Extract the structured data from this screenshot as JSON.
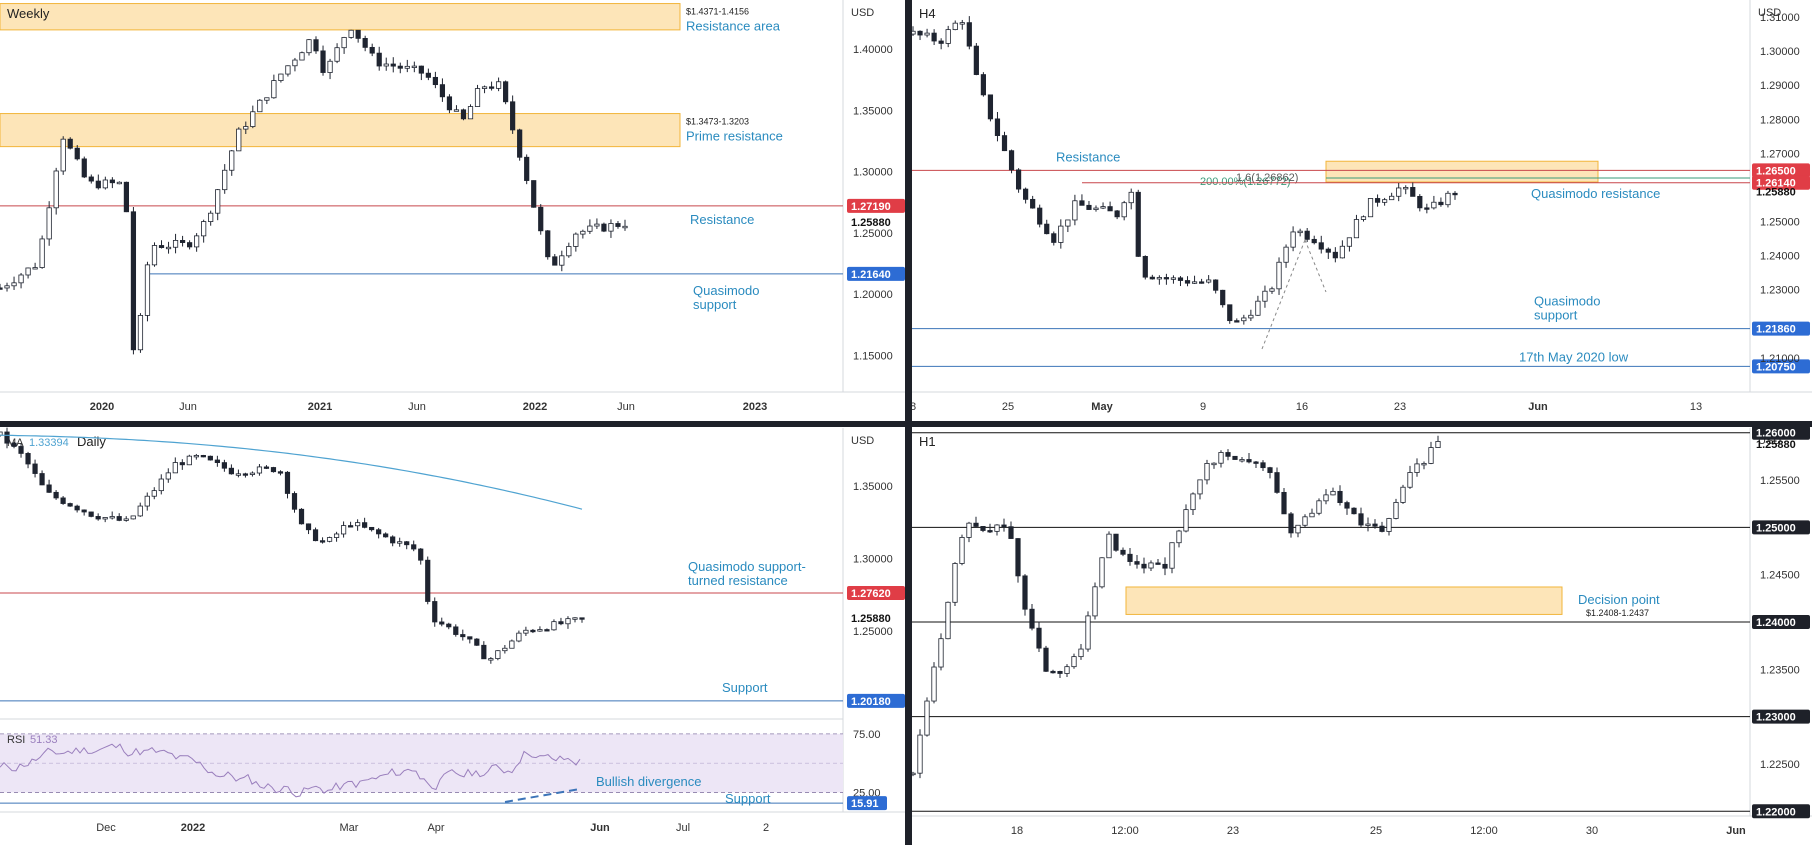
{
  "colors": {
    "up": "#ffffff",
    "down": "#1f2430",
    "zone_fill": "#fde5b8",
    "zone_stroke": "#f2b53a",
    "annotation_text": "#2a8bbf",
    "red_line": "#c8474c",
    "blue_line": "#3c74b8",
    "price_bg": "#1e2129",
    "red_tag": "#e03d46",
    "blue_tag": "#2d6cd4",
    "ma_line": "#4fa3d1",
    "rsi_line": "#9a7fbd",
    "rsi_band": "#ede6f6"
  },
  "chart_data": [
    {
      "id": "weekly",
      "type": "candlestick",
      "title": "Weekly",
      "currency": "USD",
      "ylim": [
        1.12,
        1.44
      ],
      "y_ticks": [
        "1.40000",
        "1.35000",
        "1.30000",
        "1.25000",
        "1.20000",
        "1.15000"
      ],
      "y_tick_values": [
        1.4,
        1.35,
        1.3,
        1.25,
        1.2,
        1.15
      ],
      "x_ticks": [
        "2020",
        "Jun",
        "2021",
        "Jun",
        "2022",
        "Jun",
        "2023"
      ],
      "x_tick_bold": [
        true,
        false,
        true,
        false,
        true,
        false,
        true
      ],
      "zones": [
        {
          "from": 1.4156,
          "to": 1.4371,
          "range_label": "$1.4371-1.4156",
          "label": "Resistance area"
        },
        {
          "from": 1.3203,
          "to": 1.3473,
          "range_label": "$1.3473-1.3203",
          "label": "Prime resistance"
        }
      ],
      "levels": [
        {
          "value": 1.2719,
          "tag": "1.27190",
          "style": "red",
          "label": "Resistance"
        },
        {
          "value": 1.2164,
          "tag": "1.21640",
          "style": "blue",
          "label": "Quasimodo support"
        }
      ],
      "current_price": {
        "value": 1.2588,
        "tag": "1.25880"
      }
    },
    {
      "id": "h4",
      "type": "candlestick",
      "title": "H4",
      "currency": "USD",
      "ylim": [
        1.2,
        1.315
      ],
      "y_ticks": [
        "1.31000",
        "1.30000",
        "1.29000",
        "1.28000",
        "1.27000",
        "1.25000",
        "1.24000",
        "1.23000",
        "1.21000"
      ],
      "y_tick_values": [
        1.31,
        1.3,
        1.29,
        1.28,
        1.27,
        1.25,
        1.24,
        1.23,
        1.21
      ],
      "x_ticks": [
        "8",
        "25",
        "May",
        "9",
        "16",
        "23",
        "Jun",
        "13"
      ],
      "x_tick_bold": [
        false,
        false,
        true,
        false,
        false,
        false,
        true,
        false
      ],
      "zones": [
        {
          "from": 1.2616,
          "to": 1.2677,
          "label": "Quasimodo resistance"
        }
      ],
      "fib_labels": [
        "200.00%(1.26772)",
        "1.6(1.26862)"
      ],
      "levels": [
        {
          "value": 1.265,
          "tag": "1.26500",
          "style": "red",
          "label": "Resistance"
        },
        {
          "value": 1.2614,
          "tag": "1.26140",
          "style": "red"
        },
        {
          "value": 1.2186,
          "tag": "1.21860",
          "style": "blue",
          "label": "Quasimodo support"
        },
        {
          "value": 1.2075,
          "tag": "1.20750",
          "style": "blue",
          "label": "17th May 2020 low"
        }
      ],
      "current_price": {
        "value": 1.2588,
        "tag": "1.25880"
      }
    },
    {
      "id": "daily",
      "type": "candlestick",
      "title": "Daily",
      "currency": "USD",
      "indicator_label": "MA",
      "indicator_value": "1.33394",
      "ylim": [
        1.19,
        1.39
      ],
      "y_ticks": [
        "1.35000",
        "1.30000",
        "1.25000"
      ],
      "y_tick_values": [
        1.35,
        1.3,
        1.25
      ],
      "x_ticks": [
        "Dec",
        "2022",
        "Mar",
        "Apr",
        "Jun",
        "Jul",
        "2"
      ],
      "x_tick_bold": [
        false,
        true,
        false,
        false,
        true,
        false,
        false
      ],
      "levels": [
        {
          "value": 1.2762,
          "tag": "1.27620",
          "style": "red",
          "label": "Quasimodo support-turned resistance"
        },
        {
          "value": 1.2018,
          "tag": "1.20180",
          "style": "blue",
          "label": "Support"
        }
      ],
      "current_price": {
        "value": 1.2588,
        "tag": "1.25880"
      },
      "rsi": {
        "label": "RSI",
        "value": "51.33",
        "ticks": [
          "75.00",
          "25.00"
        ],
        "tick_values": [
          75,
          25
        ],
        "support_tag": "15.91",
        "support_label": "Support",
        "divergence_label": "Bullish divergence"
      }
    },
    {
      "id": "h1",
      "type": "candlestick",
      "title": "H1",
      "currency": "USD",
      "ylim": [
        1.2195,
        1.2605
      ],
      "y_ticks": [
        "1.25500",
        "1.24500",
        "1.23500",
        "1.22500"
      ],
      "y_tick_values": [
        1.255,
        1.245,
        1.235,
        1.225
      ],
      "x_ticks": [
        "18",
        "12:00",
        "23",
        "25",
        "12:00",
        "30",
        "Jun"
      ],
      "x_tick_bold": [
        false,
        false,
        false,
        false,
        false,
        false,
        true
      ],
      "zones": [
        {
          "from": 1.2408,
          "to": 1.2437,
          "range_label": "$1.2408-1.2437",
          "label": "Decision point"
        }
      ],
      "levels": [
        {
          "value": 1.26,
          "tag": "1.26000",
          "style": "black"
        },
        {
          "value": 1.25,
          "tag": "1.25000",
          "style": "black"
        },
        {
          "value": 1.24,
          "tag": "1.24000",
          "style": "black"
        },
        {
          "value": 1.23,
          "tag": "1.23000",
          "style": "black"
        },
        {
          "value": 1.22,
          "tag": "1.22000",
          "style": "black"
        }
      ],
      "current_price": {
        "value": 1.2588,
        "tag": "1.25880"
      }
    }
  ]
}
